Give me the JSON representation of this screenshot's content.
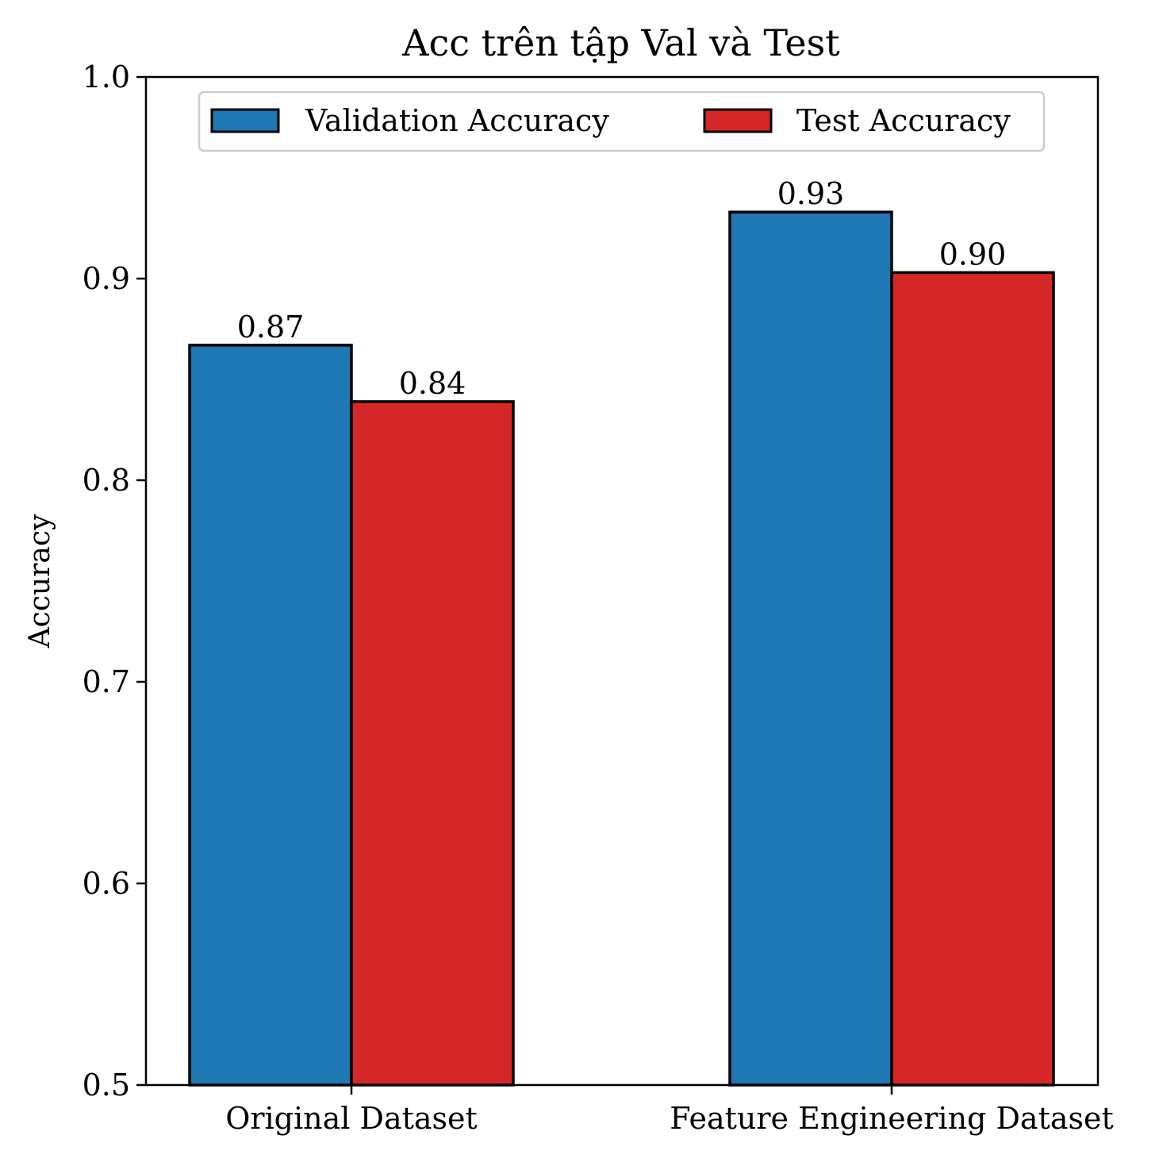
{
  "chart_data": {
    "type": "bar",
    "title": "Acc trên tập Val và Test",
    "xlabel": "",
    "ylabel": "Accuracy",
    "ylim": [
      0.5,
      1.0
    ],
    "yticks": [
      0.5,
      0.6,
      0.7,
      0.8,
      0.9,
      1.0
    ],
    "ytick_labels": [
      "0.5",
      "0.6",
      "0.7",
      "0.8",
      "0.9",
      "1.0"
    ],
    "categories": [
      "Original Dataset",
      "Feature Engineering Dataset"
    ],
    "series": [
      {
        "name": "Validation Accuracy",
        "values": [
          0.867,
          0.933
        ],
        "labels": [
          "0.87",
          "0.93"
        ],
        "color": "#1f77b4"
      },
      {
        "name": "Test Accuracy",
        "values": [
          0.839,
          0.903
        ],
        "labels": [
          "0.84",
          "0.90"
        ],
        "color": "#d62728"
      }
    ],
    "legend": {
      "placement": "upper center",
      "columns": 2
    },
    "grid": false
  }
}
